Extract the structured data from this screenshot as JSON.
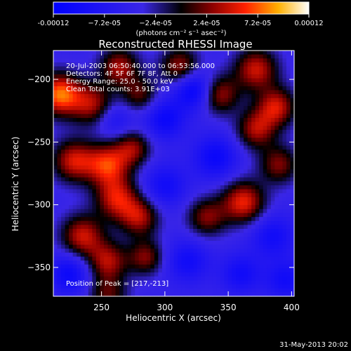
{
  "chart_data": {
    "type": "heatmap",
    "title": "Reconstructed RHESSI Image",
    "xlabel": "Heliocentric X (arcsec)",
    "ylabel": "Heliocentric Y (arcsec)",
    "xlim": [
      212,
      402
    ],
    "ylim": [
      -373,
      -177
    ],
    "x_ticks": [
      250,
      300,
      350,
      400
    ],
    "y_ticks": [
      -200,
      -250,
      -300,
      -350
    ],
    "colorbar": {
      "min": -0.00012,
      "max": 0.00012,
      "tick_values": [
        -0.00012,
        -7.2e-05,
        -2.4e-05,
        2.4e-05,
        7.2e-05,
        0.00012
      ],
      "tick_labels": [
        "-0.00012",
        "−7.2e-05",
        "−2.4e-05",
        "2.4e-05",
        "7.2e-05",
        "0.00012"
      ],
      "unit_label": "(photons cm⁻² s⁻¹ asec⁻²)"
    },
    "info_lines": [
      "20-Jul-2003 06:50:40.000 to 06:53:56.000",
      "Detectors: 4F 5F 6F 7F 8F, Att 0",
      "Energy Range: 25.0 - 50.0 keV",
      "Clean    Total counts: 3.91E+03"
    ],
    "peak_label": "Position of Peak = [217,-213]",
    "peak_position": [
      217,
      -213
    ],
    "timestamp": "31-May-2013 20:02",
    "sources": [
      {
        "x": 217,
        "y": -212,
        "flux": 0.00012,
        "sigma": 12
      },
      {
        "x": 243,
        "y": -220,
        "flux": 8e-05,
        "sigma": 12
      },
      {
        "x": 264,
        "y": -190,
        "flux": 8e-05,
        "sigma": 11
      },
      {
        "x": 280,
        "y": -212,
        "flux": 6e-05,
        "sigma": 10
      },
      {
        "x": 312,
        "y": -190,
        "flux": 8e-05,
        "sigma": 11
      },
      {
        "x": 343,
        "y": -212,
        "flux": 8e-05,
        "sigma": 11
      },
      {
        "x": 372,
        "y": -192,
        "flux": 9e-05,
        "sigma": 12
      },
      {
        "x": 388,
        "y": -222,
        "flux": 9e-05,
        "sigma": 11
      },
      {
        "x": 372,
        "y": -240,
        "flux": 8e-05,
        "sigma": 11
      },
      {
        "x": 228,
        "y": -265,
        "flux": 9e-05,
        "sigma": 12
      },
      {
        "x": 255,
        "y": -268,
        "flux": 0.0001,
        "sigma": 12
      },
      {
        "x": 275,
        "y": -255,
        "flux": 7e-05,
        "sigma": 10
      },
      {
        "x": 262,
        "y": -295,
        "flux": 9e-05,
        "sigma": 12
      },
      {
        "x": 280,
        "y": -310,
        "flux": 8e-05,
        "sigma": 11
      },
      {
        "x": 235,
        "y": -325,
        "flux": 9e-05,
        "sigma": 12
      },
      {
        "x": 255,
        "y": -345,
        "flux": 8e-05,
        "sigma": 11
      },
      {
        "x": 285,
        "y": -342,
        "flux": 7e-05,
        "sigma": 10
      },
      {
        "x": 333,
        "y": -310,
        "flux": 7e-05,
        "sigma": 11
      },
      {
        "x": 362,
        "y": -298,
        "flux": 0.0001,
        "sigma": 12
      },
      {
        "x": 390,
        "y": -268,
        "flux": 7e-05,
        "sigma": 11
      },
      {
        "x": 255,
        "y": -372,
        "flux": 6e-05,
        "sigma": 11
      },
      {
        "x": 323,
        "y": -208,
        "flux": -8e-05,
        "sigma": 11
      },
      {
        "x": 300,
        "y": -232,
        "flux": -6e-05,
        "sigma": 11
      },
      {
        "x": 340,
        "y": -262,
        "flux": -6e-05,
        "sigma": 12
      },
      {
        "x": 385,
        "y": -325,
        "flux": -5e-05,
        "sigma": 12
      },
      {
        "x": 318,
        "y": -345,
        "flux": -5e-05,
        "sigma": 12
      },
      {
        "x": 360,
        "y": -355,
        "flux": -5e-05,
        "sigma": 11
      },
      {
        "x": 225,
        "y": -355,
        "flux": -6e-05,
        "sigma": 11
      },
      {
        "x": 260,
        "y": -232,
        "flux": -4e-05,
        "sigma": 10
      },
      {
        "x": 300,
        "y": -285,
        "flux": -5e-05,
        "sigma": 12
      },
      {
        "x": 395,
        "y": -360,
        "flux": -5e-05,
        "sigma": 11
      }
    ]
  }
}
